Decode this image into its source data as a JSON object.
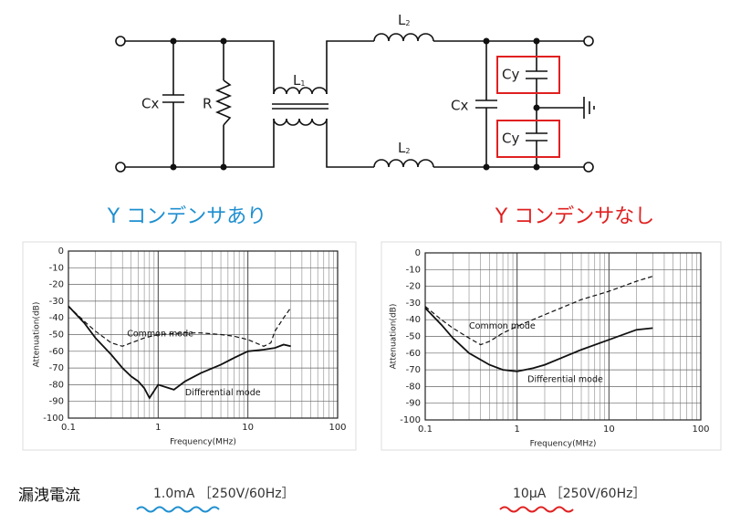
{
  "circuit": {
    "cx_left": "Cx",
    "r": "R",
    "l1": {
      "main": "L",
      "sub": "1"
    },
    "l2_top": {
      "main": "L",
      "sub": "2"
    },
    "l2_bottom": {
      "main": "L",
      "sub": "2"
    },
    "cx_right": "Cx",
    "cy_top": "Cy",
    "cy_bottom": "Cy"
  },
  "chart_data": [
    {
      "type": "line",
      "title": "Y コンデンサあり",
      "title_color": "#1f8fd0",
      "xlabel": "Frequency(MHz)",
      "ylabel": "Attenuation(dB)",
      "xscale": "log",
      "grid": true,
      "xlim": [
        0.1,
        100
      ],
      "xticks": [
        0.1,
        1,
        10,
        100
      ],
      "ylim": [
        -100,
        0
      ],
      "yticks": [
        0,
        -10,
        -20,
        -30,
        -40,
        -50,
        -60,
        -70,
        -80,
        -90,
        -100
      ],
      "series": [
        {
          "name": "Common mode",
          "color": "#111111",
          "dash": true,
          "x": [
            0.1,
            0.15,
            0.2,
            0.3,
            0.4,
            0.5,
            0.7,
            1,
            2,
            3,
            5,
            7,
            10,
            15,
            18,
            20,
            25,
            30
          ],
          "values": [
            -33,
            -42,
            -48,
            -55,
            -57,
            -55,
            -52,
            -50,
            -49,
            -49,
            -50,
            -51,
            -53,
            -57,
            -55,
            -48,
            -40,
            -34
          ]
        },
        {
          "name": "Differential mode",
          "color": "#111111",
          "dash": false,
          "x": [
            0.1,
            0.15,
            0.2,
            0.3,
            0.4,
            0.5,
            0.6,
            0.7,
            0.8,
            1,
            1.5,
            2,
            3,
            5,
            7,
            10,
            15,
            20,
            25,
            30
          ],
          "values": [
            -33,
            -43,
            -52,
            -62,
            -70,
            -75,
            -78,
            -82,
            -88,
            -80,
            -83,
            -78,
            -73,
            -68,
            -64,
            -60,
            -59,
            -58,
            -56,
            -57
          ]
        }
      ]
    },
    {
      "type": "line",
      "title": "Y コンデンサなし",
      "title_color": "#e02020",
      "xlabel": "Frequency(MHz)",
      "ylabel": "Attenuation(dB)",
      "xscale": "log",
      "grid": true,
      "xlim": [
        0.1,
        100
      ],
      "xticks": [
        0.1,
        1,
        10,
        100
      ],
      "ylim": [
        -100,
        0
      ],
      "yticks": [
        0,
        -10,
        -20,
        -30,
        -40,
        -50,
        -60,
        -70,
        -80,
        -90,
        -100
      ],
      "series": [
        {
          "name": "Common mode",
          "color": "#111111",
          "dash": true,
          "x": [
            0.1,
            0.15,
            0.2,
            0.3,
            0.4,
            0.5,
            0.7,
            1,
            2,
            3,
            5,
            10,
            20,
            30
          ],
          "values": [
            -32,
            -40,
            -45,
            -51,
            -55,
            -53,
            -48,
            -44,
            -37,
            -33,
            -28,
            -23,
            -17,
            -14
          ]
        },
        {
          "name": "Differential mode",
          "color": "#111111",
          "dash": false,
          "x": [
            0.1,
            0.15,
            0.2,
            0.3,
            0.5,
            0.7,
            1,
            1.5,
            2,
            3,
            5,
            10,
            20,
            30
          ],
          "values": [
            -33,
            -43,
            -51,
            -60,
            -67,
            -70,
            -71,
            -69,
            -67,
            -63,
            -58,
            -52,
            -46,
            -45
          ]
        }
      ]
    }
  ],
  "leakage": {
    "label": "漏洩電流",
    "with_y": "1.0mA ［250V/60Hz］",
    "without_y": "10μA ［250V/60Hz］"
  }
}
